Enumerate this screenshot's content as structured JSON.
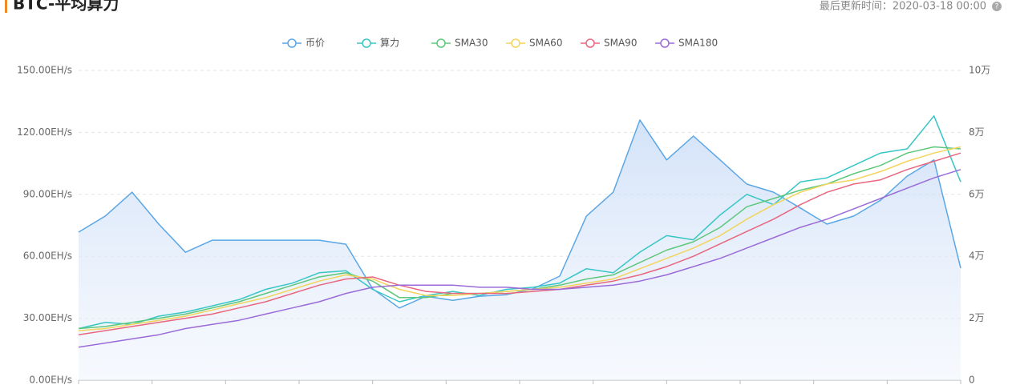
{
  "chart_data": {
    "type": "line",
    "title": "BTC-平均算力",
    "subtitle": "最后更新时间：2020-03-18 00:00",
    "categories": [
      null,
      null,
      null,
      null,
      null,
      null,
      null,
      null,
      null,
      null,
      null,
      null,
      null,
      null,
      null,
      null,
      null,
      null,
      null,
      null,
      null,
      null,
      null,
      null,
      null,
      null,
      null,
      null,
      null,
      null,
      null,
      null,
      null,
      null
    ],
    "ylim": [
      0,
      150
    ],
    "yticks": [
      {
        "value": 0,
        "label": "0.00EH/s"
      },
      {
        "value": 30,
        "label": "30.00EH/s"
      },
      {
        "value": 60,
        "label": "60.00EH/s"
      },
      {
        "value": 90,
        "label": "90.00EH/s"
      },
      {
        "value": 120,
        "label": "120.00EH/s"
      },
      {
        "value": 150,
        "label": "150.00EH/s"
      }
    ],
    "y2lim": [
      0,
      100000
    ],
    "y2ticks": [
      0,
      {
        "value": 20000,
        "label": "2万"
      },
      {
        "value": 40000,
        "label": "4万"
      },
      {
        "value": 60000,
        "label": "6万"
      },
      {
        "value": 80000,
        "label": "8万"
      },
      {
        "value": 100000,
        "label": "10万"
      }
    ],
    "grid": true,
    "series": [
      {
        "name": "币价",
        "color": "#5aa6e6",
        "axis": "y2",
        "area": true,
        "values": [
          47800,
          53000,
          60700,
          50400,
          41300,
          45200,
          45200,
          45200,
          45200,
          45200,
          43900,
          29500,
          23300,
          27100,
          25800,
          27100,
          27600,
          29500,
          33600,
          53000,
          60700,
          84000,
          71100,
          78800,
          71100,
          63300,
          60700,
          55600,
          50400,
          53000,
          58100,
          65900,
          71100,
          36200
        ]
      },
      {
        "name": "算力",
        "color": "#36c6c6",
        "values": [
          25,
          28,
          27,
          31,
          33,
          36,
          39,
          44,
          47,
          52,
          53,
          44,
          38,
          41,
          43,
          41,
          44,
          45,
          47,
          54,
          52,
          62,
          70,
          68,
          80,
          90,
          85,
          96,
          98,
          104,
          110,
          112,
          128,
          96
        ]
      },
      {
        "name": "SMA30",
        "color": "#5dc77b",
        "values": [
          25,
          26,
          28,
          30,
          32,
          35,
          38,
          42,
          46,
          50,
          52,
          48,
          40,
          40,
          42,
          42,
          43,
          44,
          46,
          49,
          51,
          57,
          63,
          67,
          74,
          84,
          88,
          92,
          95,
          100,
          104,
          110,
          113,
          112
        ]
      },
      {
        "name": "SMA60",
        "color": "#f2d45c",
        "values": [
          24,
          25,
          27,
          29,
          31,
          34,
          37,
          40,
          44,
          48,
          51,
          49,
          44,
          41,
          41,
          42,
          43,
          44,
          45,
          47,
          49,
          54,
          59,
          64,
          70,
          78,
          85,
          91,
          95,
          97,
          101,
          106,
          110,
          113
        ]
      },
      {
        "name": "SMA90",
        "color": "#e8667e",
        "values": [
          22,
          24,
          26,
          28,
          30,
          32,
          35,
          38,
          42,
          46,
          49,
          50,
          46,
          43,
          42,
          42,
          42,
          43,
          44,
          46,
          48,
          51,
          55,
          60,
          66,
          72,
          78,
          85,
          91,
          95,
          97,
          102,
          106,
          110
        ]
      },
      {
        "name": "SMA180",
        "color": "#9a6bd8",
        "values": [
          16,
          18,
          20,
          22,
          25,
          27,
          29,
          32,
          35,
          38,
          42,
          45,
          46,
          46,
          46,
          45,
          45,
          44,
          44,
          45,
          46,
          48,
          51,
          55,
          59,
          64,
          69,
          74,
          78,
          83,
          88,
          93,
          98,
          102
        ]
      }
    ]
  }
}
